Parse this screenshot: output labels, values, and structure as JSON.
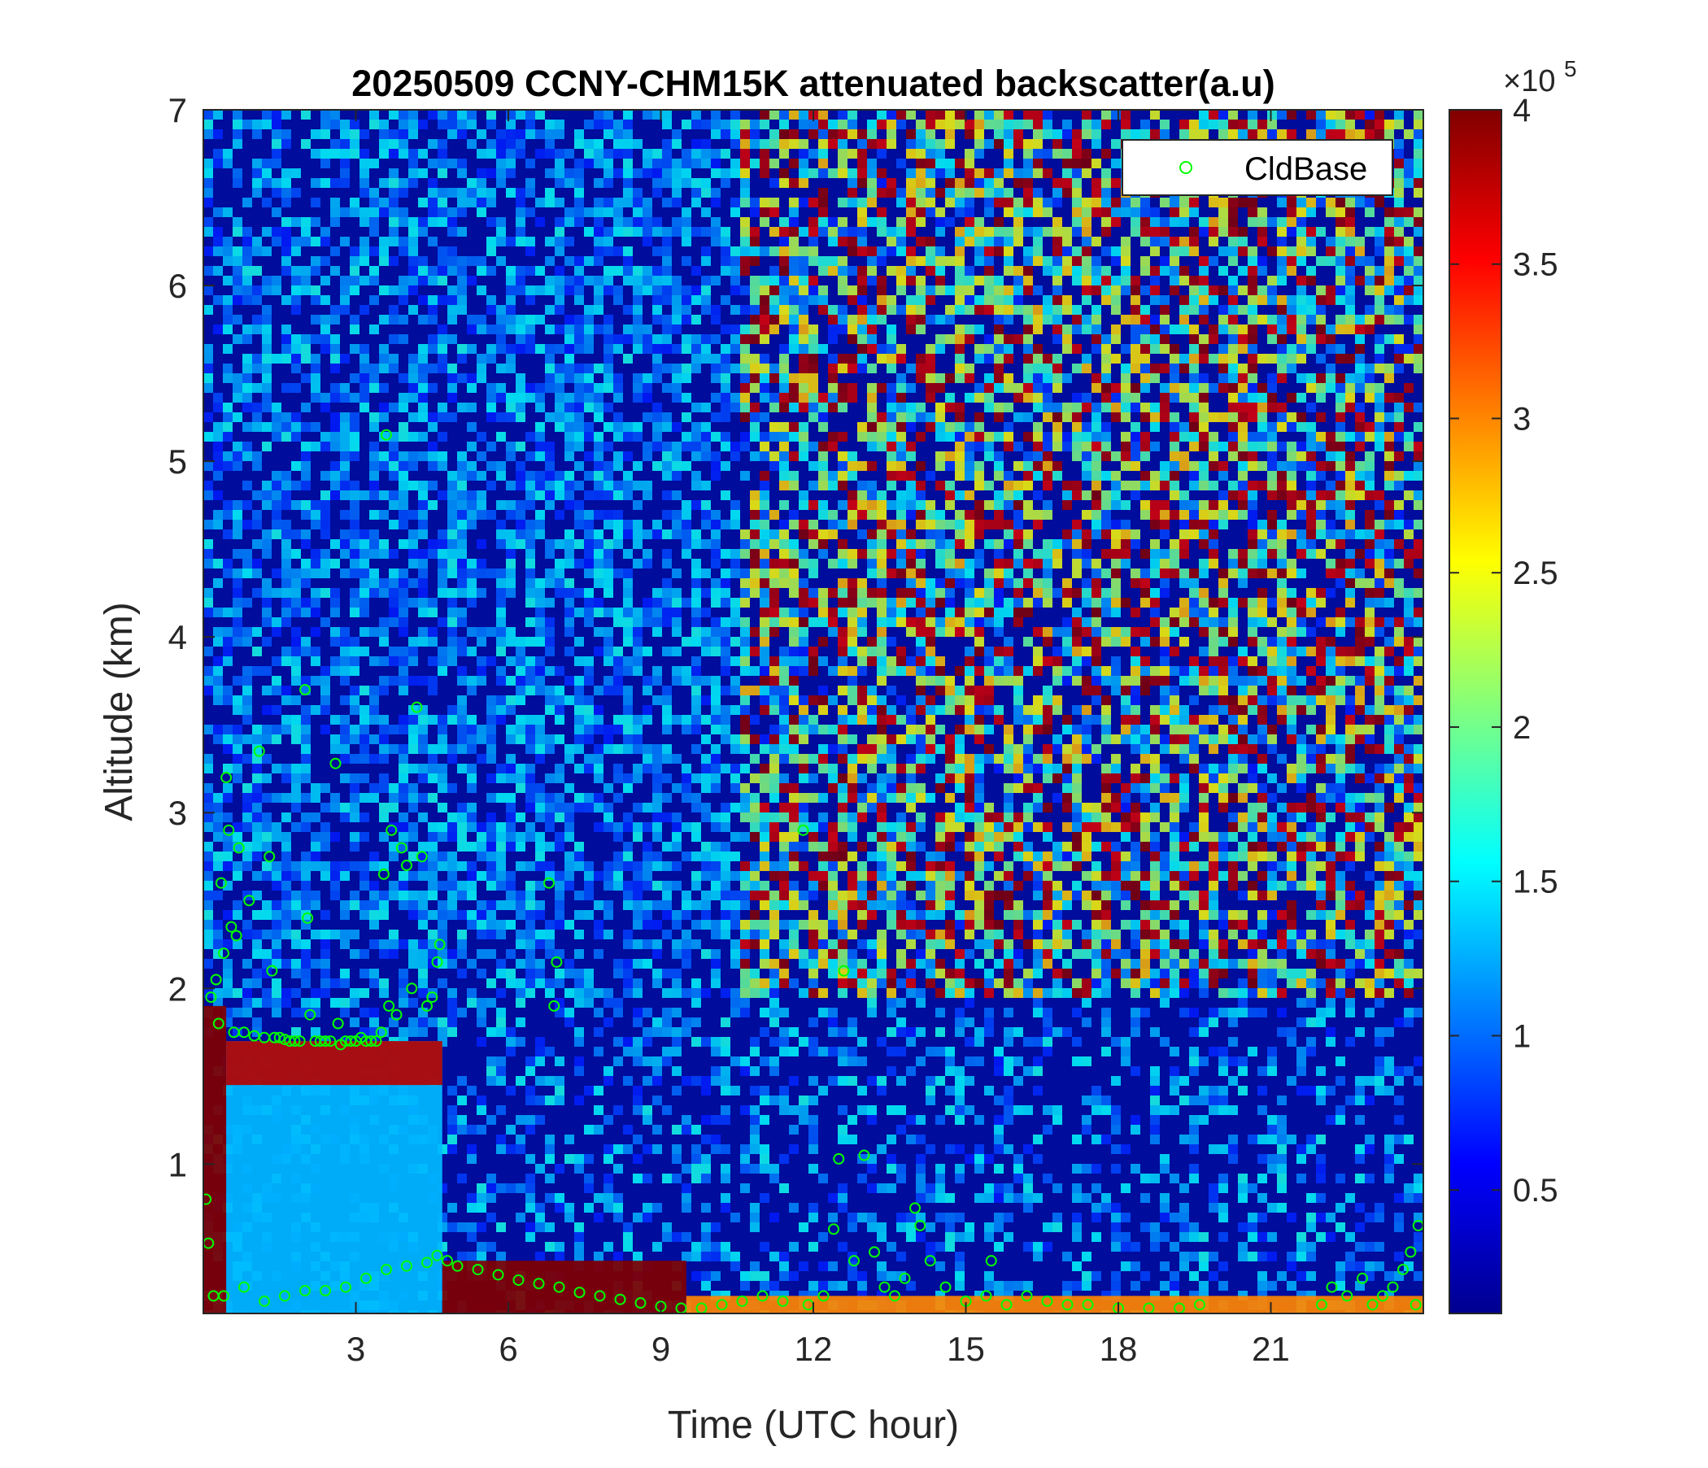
{
  "chart_data": {
    "type": "heatmap",
    "title": "20250509 CCNY-CHM15K attenuated backscatter(a.u)",
    "xlabel": "Time (UTC hour)",
    "ylabel": "Altitude (km)",
    "xlim": [
      0,
      24
    ],
    "ylim": [
      0.15,
      7
    ],
    "xticks": [
      3,
      6,
      9,
      12,
      15,
      18,
      21
    ],
    "xtick_labels": [
      "3",
      "6",
      "9",
      "12",
      "15",
      "18",
      "21"
    ],
    "yticks": [
      1,
      2,
      3,
      4,
      5,
      6,
      7
    ],
    "ytick_labels": [
      "1",
      "2",
      "3",
      "4",
      "5",
      "6",
      "7"
    ],
    "colorbar": {
      "colormap": "jet",
      "clim": [
        10000,
        400000
      ],
      "exponent_label": "×10",
      "exponent_power": "5",
      "ticks": [
        0.5,
        1,
        1.5,
        2,
        2.5,
        3,
        3.5,
        4
      ],
      "tick_labels": [
        "0.5",
        "1",
        "1.5",
        "2",
        "2.5",
        "3",
        "3.5",
        "4"
      ]
    },
    "legend": {
      "placement": "top-right",
      "entries": [
        {
          "label": "CldBase",
          "marker": "circle",
          "color": "#00ff00"
        }
      ]
    },
    "backscatter_regions": [
      {
        "t_start": 0,
        "t_end": 0.45,
        "alt_base": 0.15,
        "alt_top": 1.9,
        "level": 4.0
      },
      {
        "t_start": 0.45,
        "t_end": 4.7,
        "alt_base": 0.15,
        "alt_top": 1.7,
        "level": 1.3
      },
      {
        "t_start": 0.45,
        "t_end": 4.7,
        "alt_base": 1.45,
        "alt_top": 1.7,
        "level": 3.8
      },
      {
        "t_start": 4.7,
        "t_end": 9.5,
        "alt_base": 0.15,
        "alt_top": 0.45,
        "level": 4.0
      },
      {
        "t_start": 9.5,
        "t_end": 24,
        "alt_base": 0.15,
        "alt_top": 0.25,
        "level": 3.0
      },
      {
        "t_start": 10.5,
        "t_end": 24,
        "alt_base": 2.0,
        "alt_top": 7.0,
        "level": 2.2
      }
    ],
    "series": [
      {
        "name": "CldBase",
        "points": [
          [
            0.05,
            0.8
          ],
          [
            0.1,
            0.55
          ],
          [
            0.15,
            1.95
          ],
          [
            0.25,
            2.05
          ],
          [
            0.3,
            1.8
          ],
          [
            0.35,
            2.6
          ],
          [
            0.4,
            2.2
          ],
          [
            0.45,
            3.2
          ],
          [
            0.5,
            2.9
          ],
          [
            0.55,
            2.35
          ],
          [
            0.6,
            1.75
          ],
          [
            0.65,
            2.3
          ],
          [
            0.7,
            2.8
          ],
          [
            0.8,
            1.75
          ],
          [
            0.9,
            2.5
          ],
          [
            1.0,
            1.73
          ],
          [
            1.1,
            3.35
          ],
          [
            1.2,
            1.72
          ],
          [
            1.3,
            2.75
          ],
          [
            1.35,
            2.1
          ],
          [
            1.4,
            1.72
          ],
          [
            1.5,
            1.72
          ],
          [
            1.6,
            1.71
          ],
          [
            1.7,
            1.7
          ],
          [
            1.8,
            1.7
          ],
          [
            1.9,
            1.7
          ],
          [
            2.0,
            3.7
          ],
          [
            2.05,
            2.4
          ],
          [
            2.1,
            1.85
          ],
          [
            2.2,
            1.7
          ],
          [
            2.3,
            1.7
          ],
          [
            2.4,
            1.7
          ],
          [
            2.5,
            1.7
          ],
          [
            2.6,
            3.28
          ],
          [
            2.65,
            1.8
          ],
          [
            2.7,
            1.68
          ],
          [
            2.8,
            1.7
          ],
          [
            2.9,
            1.7
          ],
          [
            3.0,
            1.7
          ],
          [
            3.1,
            1.72
          ],
          [
            3.2,
            1.7
          ],
          [
            3.3,
            1.7
          ],
          [
            3.4,
            1.7
          ],
          [
            3.5,
            1.75
          ],
          [
            3.55,
            2.65
          ],
          [
            3.6,
            5.15
          ],
          [
            3.65,
            1.9
          ],
          [
            3.7,
            2.9
          ],
          [
            3.8,
            1.85
          ],
          [
            3.9,
            2.8
          ],
          [
            4.0,
            2.7
          ],
          [
            4.1,
            2.0
          ],
          [
            4.2,
            3.6
          ],
          [
            4.3,
            2.75
          ],
          [
            4.4,
            1.9
          ],
          [
            4.5,
            1.95
          ],
          [
            4.6,
            2.15
          ],
          [
            4.65,
            2.25
          ],
          [
            0.2,
            0.25
          ],
          [
            0.4,
            0.25
          ],
          [
            0.8,
            0.3
          ],
          [
            1.2,
            0.22
          ],
          [
            1.6,
            0.25
          ],
          [
            2.0,
            0.28
          ],
          [
            2.4,
            0.28
          ],
          [
            2.8,
            0.3
          ],
          [
            3.2,
            0.35
          ],
          [
            3.6,
            0.4
          ],
          [
            4.0,
            0.42
          ],
          [
            4.4,
            0.44
          ],
          [
            4.6,
            0.48
          ],
          [
            4.8,
            0.45
          ],
          [
            5.0,
            0.42
          ],
          [
            5.4,
            0.4
          ],
          [
            5.8,
            0.37
          ],
          [
            6.2,
            0.34
          ],
          [
            6.6,
            0.32
          ],
          [
            7.0,
            0.3
          ],
          [
            7.4,
            0.27
          ],
          [
            7.8,
            0.25
          ],
          [
            8.2,
            0.23
          ],
          [
            8.6,
            0.21
          ],
          [
            9.0,
            0.19
          ],
          [
            9.4,
            0.18
          ],
          [
            6.8,
            2.6
          ],
          [
            6.9,
            1.9
          ],
          [
            6.95,
            2.15
          ],
          [
            9.8,
            0.18
          ],
          [
            10.2,
            0.2
          ],
          [
            10.6,
            0.22
          ],
          [
            11.0,
            0.25
          ],
          [
            11.4,
            0.22
          ],
          [
            11.8,
            2.9
          ],
          [
            11.9,
            0.2
          ],
          [
            12.2,
            0.25
          ],
          [
            12.4,
            0.63
          ],
          [
            12.5,
            1.03
          ],
          [
            12.6,
            2.1
          ],
          [
            12.8,
            0.45
          ],
          [
            13.0,
            1.05
          ],
          [
            13.2,
            0.5
          ],
          [
            13.4,
            0.3
          ],
          [
            13.6,
            0.25
          ],
          [
            13.8,
            0.35
          ],
          [
            14.0,
            0.75
          ],
          [
            14.1,
            0.65
          ],
          [
            14.3,
            0.45
          ],
          [
            14.6,
            0.3
          ],
          [
            15.0,
            0.22
          ],
          [
            15.4,
            0.25
          ],
          [
            15.5,
            0.45
          ],
          [
            15.8,
            0.2
          ],
          [
            16.2,
            0.25
          ],
          [
            16.6,
            0.22
          ],
          [
            17.0,
            0.2
          ],
          [
            17.4,
            0.2
          ],
          [
            18.0,
            0.18
          ],
          [
            18.6,
            0.18
          ],
          [
            19.2,
            0.18
          ],
          [
            19.6,
            0.2
          ],
          [
            22.0,
            0.2
          ],
          [
            22.2,
            0.3
          ],
          [
            22.5,
            0.25
          ],
          [
            22.8,
            0.35
          ],
          [
            23.0,
            0.2
          ],
          [
            23.2,
            0.25
          ],
          [
            23.4,
            0.3
          ],
          [
            23.6,
            0.4
          ],
          [
            23.75,
            0.5
          ],
          [
            23.85,
            0.2
          ],
          [
            23.9,
            0.65
          ]
        ]
      }
    ]
  }
}
